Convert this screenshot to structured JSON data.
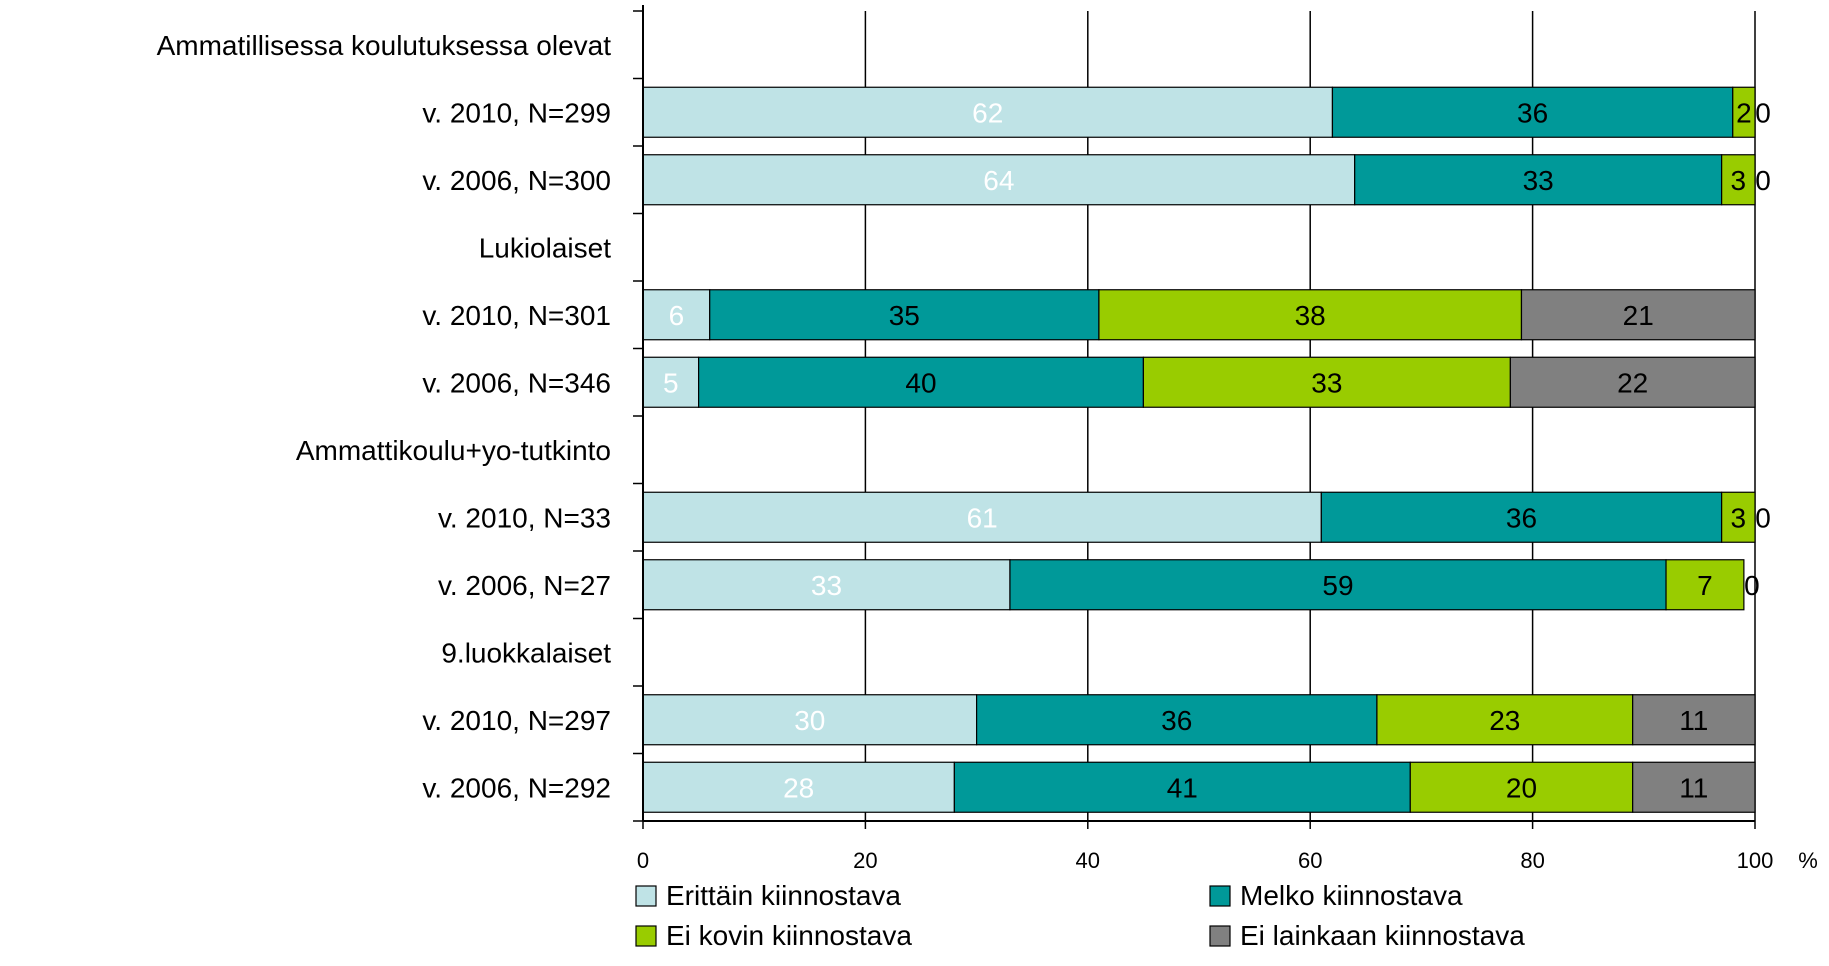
{
  "chart_data": {
    "type": "bar",
    "orientation": "horizontal",
    "stacked": true,
    "xlim": [
      0,
      100
    ],
    "x_ticks": [
      "0",
      "20",
      "40",
      "60",
      "80",
      "100"
    ],
    "x_unit": "%",
    "grid": true,
    "legend_position": "bottom",
    "categories": [
      "Ammatillisessa koulutuksessa olevat",
      "v. 2010, N=299",
      "v. 2006, N=300",
      "Lukiolaiset",
      "v. 2010, N=301",
      "v. 2006, N=346",
      "Ammattikoulu+yo-tutkinto",
      "v. 2010, N=33",
      "v. 2006, N=27",
      "9.luokkalaiset",
      "v. 2010, N=297",
      "v. 2006, N=292"
    ],
    "series": [
      {
        "name": "Erittäin kiinnostava",
        "color": "#bfe3e6",
        "label_color": "#ffffff",
        "values": [
          null,
          62,
          64,
          null,
          6,
          5,
          null,
          61,
          33,
          null,
          30,
          28
        ]
      },
      {
        "name": "Melko kiinnostava",
        "color": "#009999",
        "label_color": "#000000",
        "values": [
          null,
          36,
          33,
          null,
          35,
          40,
          null,
          36,
          59,
          null,
          36,
          41
        ]
      },
      {
        "name": "Ei kovin kiinnostava",
        "color": "#99cc00",
        "label_color": "#000000",
        "values": [
          null,
          2,
          3,
          null,
          38,
          33,
          null,
          3,
          7,
          null,
          23,
          20
        ]
      },
      {
        "name": "Ei lainkaan kiinnostava",
        "color": "#808080",
        "label_color": "#000000",
        "values": [
          null,
          0,
          0,
          null,
          21,
          22,
          null,
          0,
          0,
          null,
          11,
          11
        ]
      }
    ]
  }
}
